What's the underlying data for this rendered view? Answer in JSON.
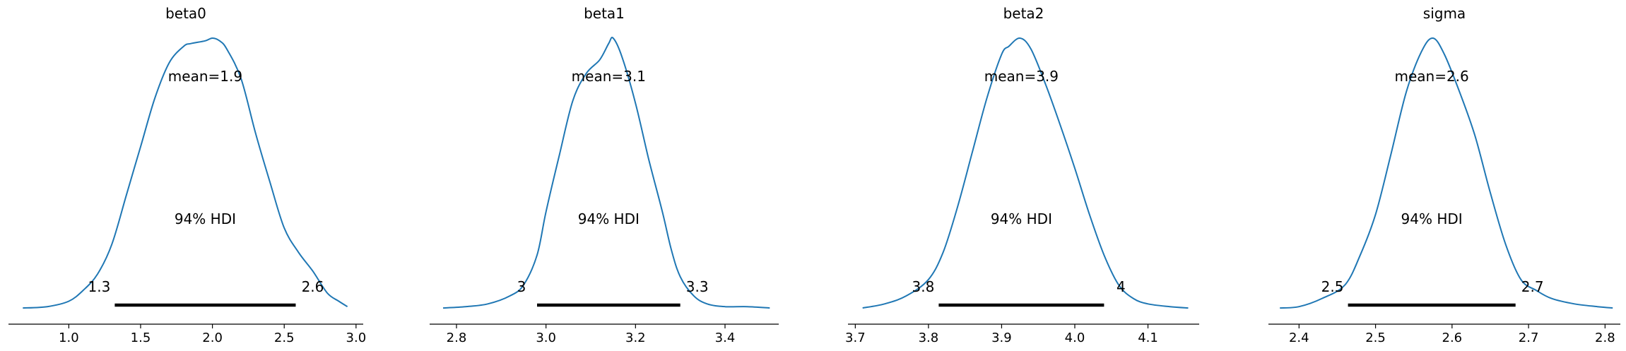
{
  "chart_data": [
    {
      "type": "area",
      "title": "beta0",
      "xlim": [
        0.58,
        3.05
      ],
      "ticks": [
        1.0,
        1.5,
        2.0,
        2.5,
        3.0
      ],
      "tick_labels": [
        "1.0",
        "1.5",
        "2.0",
        "2.5",
        "3.0"
      ],
      "mean_label": "mean=1.9",
      "hdi_label": "94% HDI",
      "hdi": [
        1.32,
        2.58
      ],
      "hdi_low_label": "1.3",
      "hdi_high_label": "2.6",
      "density": {
        "x": [
          0.68,
          0.85,
          1.0,
          1.1,
          1.2,
          1.3,
          1.4,
          1.5,
          1.6,
          1.7,
          1.8,
          1.85,
          1.95,
          2.0,
          2.05,
          2.1,
          2.2,
          2.3,
          2.4,
          2.5,
          2.6,
          2.7,
          2.8,
          2.88,
          2.94
        ],
        "y": [
          0.005,
          0.01,
          0.03,
          0.07,
          0.13,
          0.24,
          0.42,
          0.6,
          0.78,
          0.91,
          0.97,
          0.98,
          0.99,
          1.0,
          0.99,
          0.96,
          0.85,
          0.65,
          0.47,
          0.3,
          0.21,
          0.14,
          0.06,
          0.03,
          0.01
        ]
      }
    },
    {
      "type": "area",
      "title": "beta1",
      "xlim": [
        2.74,
        3.52
      ],
      "ticks": [
        2.8,
        3.0,
        3.2,
        3.4
      ],
      "tick_labels": [
        "2.8",
        "3.0",
        "3.2",
        "3.4"
      ],
      "mean_label": "mean=3.1",
      "hdi_label": "94% HDI",
      "hdi": [
        2.98,
        3.3
      ],
      "hdi_low_label": "3",
      "hdi_high_label": "3.3",
      "density": {
        "x": [
          2.77,
          2.82,
          2.87,
          2.92,
          2.95,
          2.98,
          3.0,
          3.03,
          3.06,
          3.09,
          3.12,
          3.14,
          3.15,
          3.17,
          3.2,
          3.23,
          3.26,
          3.28,
          3.3,
          3.33,
          3.36,
          3.4,
          3.45,
          3.5
        ],
        "y": [
          0.005,
          0.01,
          0.02,
          0.05,
          0.09,
          0.2,
          0.36,
          0.57,
          0.77,
          0.87,
          0.92,
          0.98,
          1.0,
          0.93,
          0.76,
          0.55,
          0.36,
          0.22,
          0.12,
          0.05,
          0.02,
          0.01,
          0.01,
          0.005
        ]
      }
    },
    {
      "type": "area",
      "title": "beta2",
      "xlim": [
        3.69,
        4.17
      ],
      "ticks": [
        3.7,
        3.8,
        3.9,
        4.0,
        4.1
      ],
      "tick_labels": [
        "3.7",
        "3.8",
        "3.9",
        "4.0",
        "4.1"
      ],
      "mean_label": "mean=3.9",
      "hdi_label": "94% HDI",
      "hdi": [
        3.814,
        4.04
      ],
      "hdi_low_label": "3.8",
      "hdi_high_label": "4",
      "density": {
        "x": [
          3.71,
          3.74,
          3.77,
          3.8,
          3.82,
          3.84,
          3.86,
          3.88,
          3.9,
          3.91,
          3.925,
          3.94,
          3.96,
          3.98,
          4.0,
          4.02,
          4.04,
          4.06,
          4.08,
          4.1,
          4.13,
          4.155
        ],
        "y": [
          0.005,
          0.02,
          0.05,
          0.11,
          0.21,
          0.38,
          0.58,
          0.78,
          0.94,
          0.97,
          1.0,
          0.96,
          0.83,
          0.68,
          0.52,
          0.35,
          0.2,
          0.09,
          0.04,
          0.02,
          0.01,
          0.005
        ]
      }
    },
    {
      "type": "area",
      "title": "sigma",
      "xlim": [
        2.36,
        2.82
      ],
      "ticks": [
        2.4,
        2.5,
        2.6,
        2.7,
        2.8
      ],
      "tick_labels": [
        "2.4",
        "2.5",
        "2.6",
        "2.7",
        "2.8"
      ],
      "mean_label": "mean=2.6",
      "hdi_label": "94% HDI",
      "hdi": [
        2.464,
        2.683
      ],
      "hdi_low_label": "2.5",
      "hdi_high_label": "2.7",
      "density": {
        "x": [
          2.375,
          2.4,
          2.43,
          2.46,
          2.48,
          2.5,
          2.52,
          2.54,
          2.56,
          2.575,
          2.59,
          2.61,
          2.63,
          2.65,
          2.67,
          2.69,
          2.71,
          2.73,
          2.76,
          2.79,
          2.81
        ],
        "y": [
          0.005,
          0.01,
          0.04,
          0.09,
          0.2,
          0.35,
          0.57,
          0.8,
          0.95,
          1.0,
          0.94,
          0.8,
          0.64,
          0.43,
          0.24,
          0.11,
          0.07,
          0.04,
          0.02,
          0.01,
          0.005
        ]
      }
    }
  ],
  "colors": {
    "curve": "#1f77b4",
    "hdi_bar": "#000000",
    "axis": "#000000"
  }
}
